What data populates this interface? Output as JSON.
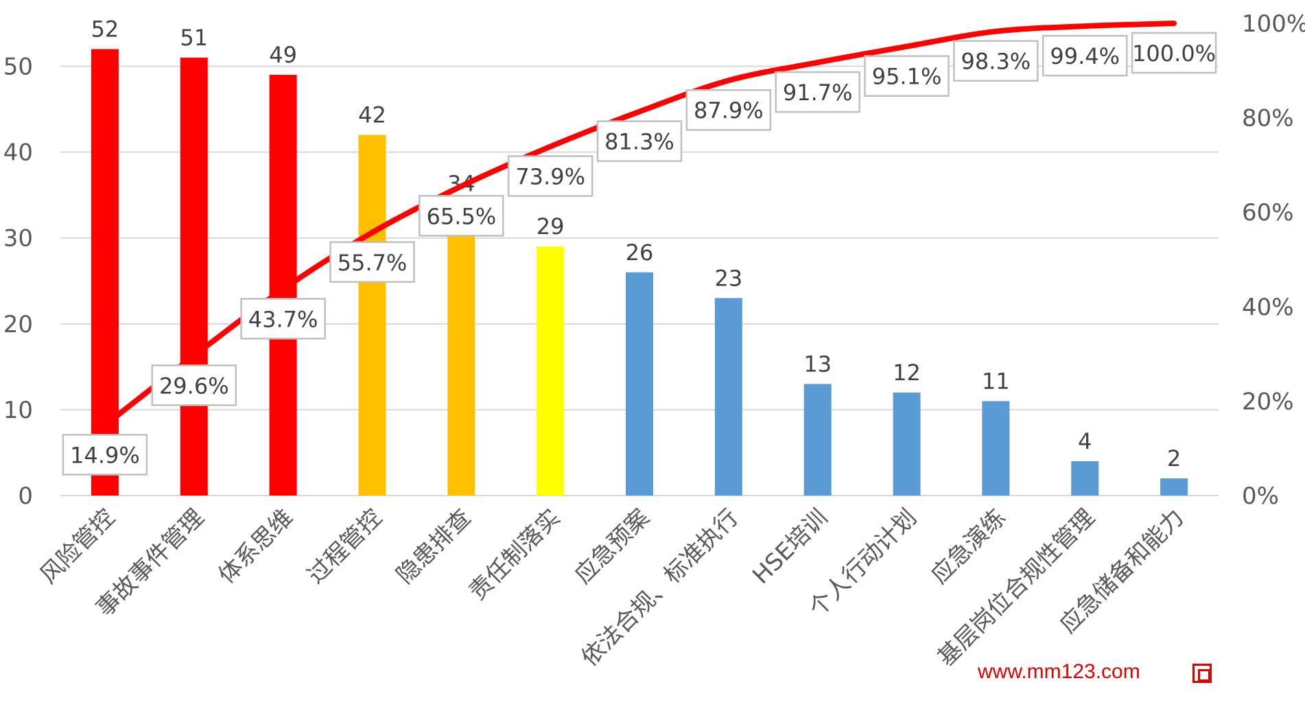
{
  "chart_data": {
    "type": "bar",
    "categories": [
      "风险管控",
      "事故事件管理",
      "体系思维",
      "过程管控",
      "隐患排查",
      "责任制落实",
      "应急预案",
      "依法合规、标准执行",
      "HSE培训",
      "个人行动计划",
      "应急演练",
      "基层岗位合规性管理",
      "应急储备和能力"
    ],
    "values": [
      52,
      51,
      49,
      42,
      34,
      29,
      26,
      23,
      13,
      12,
      11,
      4,
      2
    ],
    "bar_colors": [
      "#ff0000",
      "#ff0000",
      "#ff0000",
      "#ffc000",
      "#ffc000",
      "#ffff00",
      "#5b9bd5",
      "#5b9bd5",
      "#5b9bd5",
      "#5b9bd5",
      "#5b9bd5",
      "#5b9bd5",
      "#5b9bd5"
    ],
    "cumulative_percent": [
      14.9,
      29.6,
      43.7,
      55.7,
      65.5,
      73.9,
      81.3,
      87.9,
      91.7,
      95.1,
      98.3,
      99.4,
      100.0
    ],
    "cumulative_labels": [
      "14.9%",
      "29.6%",
      "43.7%",
      "55.7%",
      "65.5%",
      "73.9%",
      "81.3%",
      "87.9%",
      "91.7%",
      "95.1%",
      "98.3%",
      "99.4%",
      "100.0%"
    ],
    "line_color": "#ff0000",
    "y_left": {
      "min": 0,
      "max": 55,
      "ticks": [
        "0",
        "10",
        "20",
        "30",
        "40",
        "50"
      ]
    },
    "y_right": {
      "min": 0,
      "max": 100,
      "ticks": [
        "0%",
        "20%",
        "40%",
        "60%",
        "80%",
        "100%"
      ]
    },
    "grid": true
  },
  "watermark": {
    "text": "www.mm123.com",
    "logo_icon": "mm123-logo-icon"
  }
}
